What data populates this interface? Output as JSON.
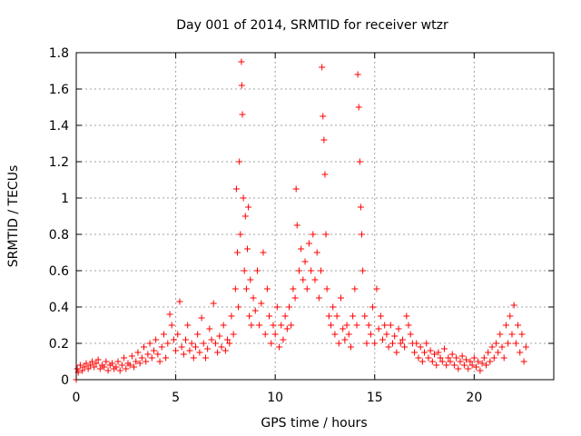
{
  "chart_data": {
    "type": "scatter",
    "title": "Day 001 of 2014, SRMTID for receiver wtzr",
    "xlabel": "GPS time / hours",
    "ylabel": "SRMTID / TECUs",
    "xlim": [
      0,
      24
    ],
    "ylim": [
      0,
      1.8
    ],
    "xticks": [
      0,
      5,
      10,
      15,
      20
    ],
    "yticks": [
      0,
      0.2,
      0.4,
      0.6,
      0.8,
      1,
      1.2,
      1.4,
      1.6,
      1.8
    ],
    "xtick_labels": [
      "0",
      "5",
      "10",
      "15",
      "20"
    ],
    "ytick_labels": [
      "0",
      "0.2",
      "0.4",
      "0.6",
      "0.8",
      "1",
      "1.2",
      "1.4",
      "1.6",
      "1.8"
    ],
    "grid": true,
    "marker": "+",
    "color": "#ff0000",
    "series": [
      {
        "name": "SRMTID",
        "points": [
          [
            0.0,
            0.0
          ],
          [
            0.05,
            0.06
          ],
          [
            0.1,
            0.04
          ],
          [
            0.2,
            0.08
          ],
          [
            0.3,
            0.05
          ],
          [
            0.4,
            0.07
          ],
          [
            0.5,
            0.09
          ],
          [
            0.6,
            0.06
          ],
          [
            0.7,
            0.08
          ],
          [
            0.8,
            0.1
          ],
          [
            0.9,
            0.07
          ],
          [
            1.0,
            0.09
          ],
          [
            1.1,
            0.11
          ],
          [
            1.2,
            0.06
          ],
          [
            1.3,
            0.08
          ],
          [
            1.4,
            0.07
          ],
          [
            1.5,
            0.1
          ],
          [
            1.6,
            0.05
          ],
          [
            1.7,
            0.08
          ],
          [
            1.8,
            0.09
          ],
          [
            1.9,
            0.06
          ],
          [
            2.0,
            0.07
          ],
          [
            2.1,
            0.1
          ],
          [
            2.2,
            0.05
          ],
          [
            2.3,
            0.08
          ],
          [
            2.4,
            0.12
          ],
          [
            2.5,
            0.06
          ],
          [
            2.6,
            0.09
          ],
          [
            2.7,
            0.08
          ],
          [
            2.8,
            0.13
          ],
          [
            2.9,
            0.07
          ],
          [
            3.0,
            0.1
          ],
          [
            3.1,
            0.15
          ],
          [
            3.2,
            0.09
          ],
          [
            3.3,
            0.12
          ],
          [
            3.4,
            0.18
          ],
          [
            3.5,
            0.1
          ],
          [
            3.6,
            0.14
          ],
          [
            3.7,
            0.2
          ],
          [
            3.8,
            0.12
          ],
          [
            3.9,
            0.16
          ],
          [
            4.0,
            0.22
          ],
          [
            4.1,
            0.14
          ],
          [
            4.2,
            0.1
          ],
          [
            4.3,
            0.18
          ],
          [
            4.4,
            0.25
          ],
          [
            4.5,
            0.12
          ],
          [
            4.6,
            0.2
          ],
          [
            4.7,
            0.36
          ],
          [
            4.8,
            0.3
          ],
          [
            4.9,
            0.22
          ],
          [
            5.0,
            0.16
          ],
          [
            5.1,
            0.25
          ],
          [
            5.2,
            0.43
          ],
          [
            5.3,
            0.18
          ],
          [
            5.4,
            0.14
          ],
          [
            5.5,
            0.22
          ],
          [
            5.6,
            0.3
          ],
          [
            5.7,
            0.16
          ],
          [
            5.8,
            0.2
          ],
          [
            5.9,
            0.12
          ],
          [
            6.0,
            0.18
          ],
          [
            6.1,
            0.25
          ],
          [
            6.2,
            0.15
          ],
          [
            6.3,
            0.34
          ],
          [
            6.4,
            0.2
          ],
          [
            6.5,
            0.12
          ],
          [
            6.6,
            0.17
          ],
          [
            6.7,
            0.28
          ],
          [
            6.8,
            0.22
          ],
          [
            6.9,
            0.42
          ],
          [
            7.0,
            0.2
          ],
          [
            7.1,
            0.15
          ],
          [
            7.2,
            0.24
          ],
          [
            7.3,
            0.18
          ],
          [
            7.4,
            0.3
          ],
          [
            7.5,
            0.16
          ],
          [
            7.6,
            0.22
          ],
          [
            7.7,
            0.2
          ],
          [
            7.8,
            0.35
          ],
          [
            7.9,
            0.25
          ],
          [
            8.0,
            0.5
          ],
          [
            8.05,
            1.05
          ],
          [
            8.1,
            0.7
          ],
          [
            8.15,
            0.4
          ],
          [
            8.2,
            1.2
          ],
          [
            8.25,
            0.8
          ],
          [
            8.3,
            1.75
          ],
          [
            8.32,
            1.62
          ],
          [
            8.35,
            1.46
          ],
          [
            8.4,
            1.0
          ],
          [
            8.45,
            0.6
          ],
          [
            8.5,
            0.9
          ],
          [
            8.55,
            0.5
          ],
          [
            8.6,
            0.72
          ],
          [
            8.65,
            0.95
          ],
          [
            8.7,
            0.35
          ],
          [
            8.75,
            0.55
          ],
          [
            8.8,
            0.3
          ],
          [
            8.9,
            0.45
          ],
          [
            9.0,
            0.38
          ],
          [
            9.1,
            0.6
          ],
          [
            9.2,
            0.3
          ],
          [
            9.3,
            0.42
          ],
          [
            9.4,
            0.7
          ],
          [
            9.5,
            0.25
          ],
          [
            9.6,
            0.5
          ],
          [
            9.7,
            0.35
          ],
          [
            9.8,
            0.2
          ],
          [
            9.9,
            0.3
          ],
          [
            10.0,
            0.25
          ],
          [
            10.1,
            0.4
          ],
          [
            10.2,
            0.18
          ],
          [
            10.3,
            0.3
          ],
          [
            10.4,
            0.22
          ],
          [
            10.5,
            0.35
          ],
          [
            10.6,
            0.28
          ],
          [
            10.7,
            0.4
          ],
          [
            10.8,
            0.3
          ],
          [
            10.9,
            0.5
          ],
          [
            11.0,
            0.45
          ],
          [
            11.05,
            1.05
          ],
          [
            11.1,
            0.85
          ],
          [
            11.2,
            0.6
          ],
          [
            11.3,
            0.72
          ],
          [
            11.4,
            0.55
          ],
          [
            11.5,
            0.65
          ],
          [
            11.6,
            0.5
          ],
          [
            11.7,
            0.75
          ],
          [
            11.8,
            0.6
          ],
          [
            11.9,
            0.8
          ],
          [
            12.0,
            0.55
          ],
          [
            12.1,
            0.7
          ],
          [
            12.2,
            0.45
          ],
          [
            12.3,
            0.6
          ],
          [
            12.35,
            1.72
          ],
          [
            12.4,
            1.45
          ],
          [
            12.45,
            1.32
          ],
          [
            12.5,
            1.13
          ],
          [
            12.55,
            0.8
          ],
          [
            12.6,
            0.5
          ],
          [
            12.7,
            0.35
          ],
          [
            12.8,
            0.3
          ],
          [
            12.9,
            0.4
          ],
          [
            13.0,
            0.25
          ],
          [
            13.1,
            0.35
          ],
          [
            13.2,
            0.2
          ],
          [
            13.3,
            0.45
          ],
          [
            13.4,
            0.28
          ],
          [
            13.5,
            0.22
          ],
          [
            13.6,
            0.3
          ],
          [
            13.7,
            0.25
          ],
          [
            13.8,
            0.18
          ],
          [
            13.9,
            0.35
          ],
          [
            14.0,
            0.5
          ],
          [
            14.1,
            0.3
          ],
          [
            14.15,
            1.68
          ],
          [
            14.2,
            1.5
          ],
          [
            14.25,
            1.2
          ],
          [
            14.3,
            0.95
          ],
          [
            14.35,
            0.8
          ],
          [
            14.4,
            0.6
          ],
          [
            14.5,
            0.35
          ],
          [
            14.6,
            0.2
          ],
          [
            14.7,
            0.3
          ],
          [
            14.8,
            0.25
          ],
          [
            14.9,
            0.4
          ],
          [
            15.0,
            0.2
          ],
          [
            15.1,
            0.5
          ],
          [
            15.2,
            0.28
          ],
          [
            15.3,
            0.35
          ],
          [
            15.4,
            0.22
          ],
          [
            15.5,
            0.3
          ],
          [
            15.6,
            0.25
          ],
          [
            15.7,
            0.18
          ],
          [
            15.8,
            0.3
          ],
          [
            15.9,
            0.2
          ],
          [
            16.0,
            0.24
          ],
          [
            16.1,
            0.15
          ],
          [
            16.2,
            0.28
          ],
          [
            16.3,
            0.2
          ],
          [
            16.4,
            0.22
          ],
          [
            16.5,
            0.18
          ],
          [
            16.6,
            0.35
          ],
          [
            16.7,
            0.3
          ],
          [
            16.8,
            0.25
          ],
          [
            16.9,
            0.2
          ],
          [
            17.0,
            0.15
          ],
          [
            17.1,
            0.2
          ],
          [
            17.2,
            0.12
          ],
          [
            17.3,
            0.18
          ],
          [
            17.4,
            0.1
          ],
          [
            17.5,
            0.15
          ],
          [
            17.6,
            0.2
          ],
          [
            17.7,
            0.12
          ],
          [
            17.8,
            0.16
          ],
          [
            17.9,
            0.1
          ],
          [
            18.0,
            0.14
          ],
          [
            18.1,
            0.08
          ],
          [
            18.2,
            0.15
          ],
          [
            18.3,
            0.12
          ],
          [
            18.4,
            0.1
          ],
          [
            18.5,
            0.17
          ],
          [
            18.6,
            0.08
          ],
          [
            18.7,
            0.12
          ],
          [
            18.8,
            0.1
          ],
          [
            18.9,
            0.14
          ],
          [
            19.0,
            0.08
          ],
          [
            19.1,
            0.12
          ],
          [
            19.2,
            0.06
          ],
          [
            19.3,
            0.1
          ],
          [
            19.4,
            0.13
          ],
          [
            19.5,
            0.08
          ],
          [
            19.6,
            0.11
          ],
          [
            19.7,
            0.06
          ],
          [
            19.8,
            0.1
          ],
          [
            19.9,
            0.08
          ],
          [
            20.0,
            0.12
          ],
          [
            20.1,
            0.07
          ],
          [
            20.2,
            0.1
          ],
          [
            20.3,
            0.05
          ],
          [
            20.4,
            0.09
          ],
          [
            20.5,
            0.12
          ],
          [
            20.6,
            0.08
          ],
          [
            20.7,
            0.15
          ],
          [
            20.8,
            0.1
          ],
          [
            20.9,
            0.18
          ],
          [
            21.0,
            0.12
          ],
          [
            21.1,
            0.2
          ],
          [
            21.2,
            0.15
          ],
          [
            21.3,
            0.25
          ],
          [
            21.4,
            0.18
          ],
          [
            21.5,
            0.12
          ],
          [
            21.6,
            0.3
          ],
          [
            21.7,
            0.2
          ],
          [
            21.8,
            0.35
          ],
          [
            21.9,
            0.25
          ],
          [
            22.0,
            0.41
          ],
          [
            22.1,
            0.2
          ],
          [
            22.2,
            0.3
          ],
          [
            22.3,
            0.15
          ],
          [
            22.4,
            0.25
          ],
          [
            22.5,
            0.1
          ],
          [
            22.6,
            0.18
          ]
        ]
      }
    ]
  }
}
